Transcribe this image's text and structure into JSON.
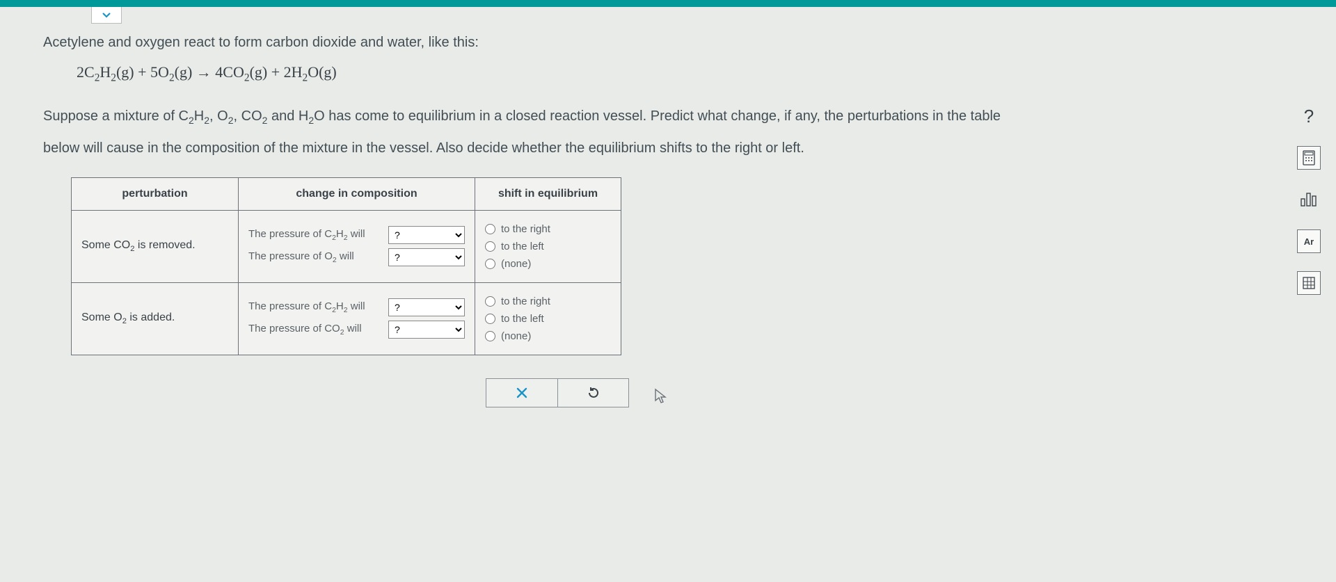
{
  "colors": {
    "teal": "#009999",
    "page_bg": "#e8ebe8",
    "text": "#424e54",
    "muted": "#5a6166",
    "border": "#6b7176",
    "action_blue": "#1a94c4"
  },
  "dropdown_placeholder": "?",
  "intro_text": "Acetylene and oxygen react to form carbon dioxide and water, like this:",
  "equation_html": "2C<sub>2</sub>H<sub>2</sub>(g) + 5O<sub>2</sub>(g)  →  4CO<sub>2</sub>(g) + 2H<sub>2</sub>O(g)",
  "context_line1_html": "Suppose a mixture of C<sub>2</sub>H<sub>2</sub>, O<sub>2</sub>, CO<sub>2</sub> and H<sub>2</sub>O has come to equilibrium in a closed reaction vessel. Predict what change, if any, the perturbations in the table",
  "context_line2": "below will cause in the composition of the mixture in the vessel. Also decide whether the equilibrium shifts to the right or left.",
  "table": {
    "headers": {
      "c1": "perturbation",
      "c2": "change in composition",
      "c3": "shift in equilibrium"
    },
    "rows": [
      {
        "perturbation_html": "Some CO<sub>2</sub> is removed.",
        "changes": [
          {
            "label_html": "The pressure of C<sub>2</sub>H<sub>2</sub> will",
            "value": "?"
          },
          {
            "label_html": "The pressure of O<sub>2</sub> will",
            "value": "?"
          }
        ],
        "shift_options": [
          "to the right",
          "to the left",
          "(none)"
        ]
      },
      {
        "perturbation_html": "Some O<sub>2</sub> is added.",
        "changes": [
          {
            "label_html": "The pressure of C<sub>2</sub>H<sub>2</sub> will",
            "value": "?"
          },
          {
            "label_html": "The pressure of CO<sub>2</sub> will",
            "value": "?"
          }
        ],
        "shift_options": [
          "to the right",
          "to the left",
          "(none)"
        ]
      }
    ]
  },
  "buttons": {
    "clear": "×",
    "reset": "↺"
  },
  "side_tools": {
    "help": "?",
    "calculator": "calc",
    "chart": "bar",
    "periodic": "Ar",
    "table_tool": "grid"
  }
}
